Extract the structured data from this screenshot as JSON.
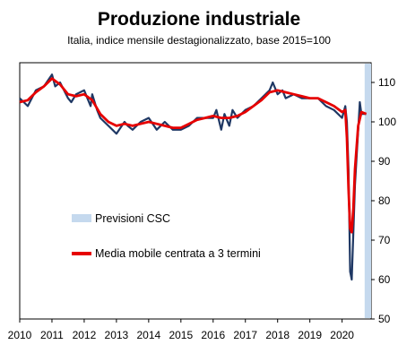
{
  "chart_data": {
    "type": "line",
    "title": "Produzione industriale",
    "subtitle": "Italia, indice mensile destagionalizzato, base 2015=100",
    "x_ticks": [
      "2010",
      "2011",
      "2012",
      "2013",
      "2014",
      "2015",
      "2016",
      "2017",
      "2018",
      "2019",
      "2020"
    ],
    "y_ticks": [
      110,
      100,
      90,
      80,
      70,
      60,
      50
    ],
    "ylim": [
      50,
      115
    ],
    "xlim": [
      2010,
      2020.9
    ],
    "grid": false,
    "legend": "center-left",
    "forecast_band": {
      "label": "Previsioni CSC",
      "x_start": 2020.7,
      "x_end": 2020.9,
      "color": "#c5d9ee"
    },
    "series": [
      {
        "name": "",
        "color": "#1f3864",
        "x": [
          2010.0,
          2010.25,
          2010.5,
          2010.75,
          2011.0,
          2011.1,
          2011.25,
          2011.5,
          2011.6,
          2011.75,
          2012.0,
          2012.2,
          2012.25,
          2012.4,
          2012.5,
          2012.75,
          2013.0,
          2013.25,
          2013.35,
          2013.5,
          2013.75,
          2014.0,
          2014.25,
          2014.5,
          2014.75,
          2015.0,
          2015.25,
          2015.5,
          2015.75,
          2016.0,
          2016.1,
          2016.25,
          2016.35,
          2016.5,
          2016.6,
          2016.75,
          2017.0,
          2017.25,
          2017.5,
          2017.75,
          2017.85,
          2018.0,
          2018.15,
          2018.25,
          2018.5,
          2018.75,
          2019.0,
          2019.25,
          2019.5,
          2019.75,
          2020.0,
          2020.1,
          2020.15,
          2020.2,
          2020.25,
          2020.3,
          2020.35,
          2020.4,
          2020.5,
          2020.55,
          2020.6,
          2020.75
        ],
        "y": [
          106,
          104,
          108,
          109,
          112,
          109,
          110,
          106,
          105,
          107,
          108,
          104,
          107,
          103,
          101,
          99,
          97,
          100,
          99,
          98,
          100,
          101,
          98,
          100,
          98,
          98,
          99,
          101,
          101,
          101,
          103,
          98,
          102,
          99,
          103,
          101,
          103,
          104,
          106,
          108,
          110,
          107,
          108,
          106,
          107,
          106,
          106,
          106,
          104,
          103,
          101,
          104,
          100,
          88,
          62,
          60,
          72,
          84,
          98,
          105,
          102,
          102
        ]
      },
      {
        "name": "Media mobile centrata a 3 termini",
        "color": "#e60000",
        "x": [
          2010.0,
          2010.25,
          2010.5,
          2010.75,
          2011.0,
          2011.25,
          2011.5,
          2011.75,
          2012.0,
          2012.25,
          2012.5,
          2012.75,
          2013.0,
          2013.25,
          2013.5,
          2013.75,
          2014.0,
          2014.25,
          2014.5,
          2014.75,
          2015.0,
          2015.25,
          2015.5,
          2015.75,
          2016.0,
          2016.25,
          2016.5,
          2016.75,
          2017.0,
          2017.25,
          2017.5,
          2017.75,
          2018.0,
          2018.25,
          2018.5,
          2018.75,
          2019.0,
          2019.25,
          2019.5,
          2019.75,
          2020.0,
          2020.1,
          2020.15,
          2020.2,
          2020.25,
          2020.3,
          2020.35,
          2020.4,
          2020.5,
          2020.6,
          2020.75
        ],
        "y": [
          105,
          105.5,
          107.5,
          109,
          111,
          109.5,
          107,
          106.5,
          107,
          105.5,
          102,
          100,
          99,
          99.5,
          99,
          99.5,
          100,
          99.5,
          99,
          98.5,
          98.5,
          99.5,
          100.5,
          101,
          101.5,
          101,
          101,
          101.5,
          102.5,
          104,
          105.5,
          107.5,
          108,
          107.5,
          107,
          106.5,
          106,
          106,
          105,
          104,
          102.5,
          103,
          96,
          83,
          73,
          72,
          78,
          88,
          99,
          102.5,
          102
        ]
      }
    ]
  }
}
